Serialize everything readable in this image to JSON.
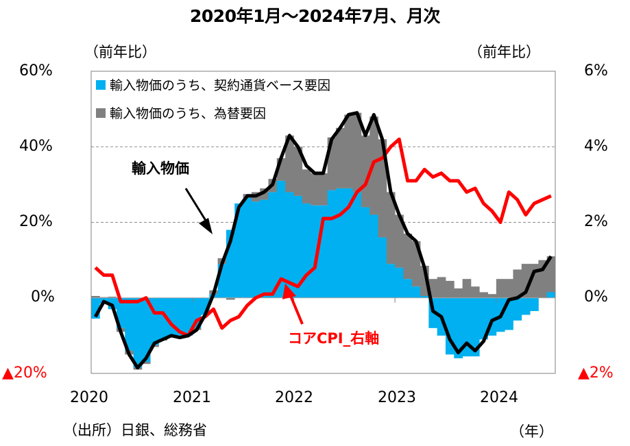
{
  "title": "2020年1月～2024年7月、月次",
  "left_unit": "（前年比）",
  "right_unit": "（前年比）",
  "left_ticks": [
    "60%",
    "40%",
    "20%",
    "0%",
    "▲20%"
  ],
  "right_ticks": [
    "6%",
    "4%",
    "2%",
    "0%",
    "▲2%"
  ],
  "x_ticks": [
    "2020",
    "2021",
    "2022",
    "2023",
    "2024"
  ],
  "source": "（出所）日銀、総務省",
  "year_unit": "（年）",
  "legend": {
    "contract": {
      "label": "輸入物価のうち、契約通貨ベース要因",
      "color": "#00b0f0"
    },
    "fx": {
      "label": "輸入物価のうち、為替要因",
      "color": "#808080"
    }
  },
  "annotations": {
    "import_price": "輸入物価",
    "core_cpi": "コアCPI_右軸"
  },
  "chart_data": {
    "type": "bar+line",
    "title": "2020年1月～2024年7月、月次",
    "xlabel": "（年）",
    "ylabel_left": "（前年比）",
    "ylabel_right": "（前年比）",
    "ylim_left": [
      -20,
      60
    ],
    "ylim_right": [
      -2,
      6
    ],
    "grid": true,
    "legend_position": "top-left",
    "x": [
      "2020-01",
      "2020-02",
      "2020-03",
      "2020-04",
      "2020-05",
      "2020-06",
      "2020-07",
      "2020-08",
      "2020-09",
      "2020-10",
      "2020-11",
      "2020-12",
      "2021-01",
      "2021-02",
      "2021-03",
      "2021-04",
      "2021-05",
      "2021-06",
      "2021-07",
      "2021-08",
      "2021-09",
      "2021-10",
      "2021-11",
      "2021-12",
      "2022-01",
      "2022-02",
      "2022-03",
      "2022-04",
      "2022-05",
      "2022-06",
      "2022-07",
      "2022-08",
      "2022-09",
      "2022-10",
      "2022-11",
      "2022-12",
      "2023-01",
      "2023-02",
      "2023-03",
      "2023-04",
      "2023-05",
      "2023-06",
      "2023-07",
      "2023-08",
      "2023-09",
      "2023-10",
      "2023-11",
      "2023-12",
      "2024-01",
      "2024-02",
      "2024-03",
      "2024-04",
      "2024-05",
      "2024-06",
      "2024-07"
    ],
    "series": [
      {
        "name": "輸入物価のうち、契約通貨ベース要因",
        "type": "bar",
        "axis": "left",
        "color": "#00b0f0",
        "values": [
          -5.5,
          -1.5,
          -3,
          -8,
          -14,
          -18.5,
          -17,
          -12.5,
          -11,
          -10,
          -10,
          -10,
          -8,
          -4.5,
          1,
          9,
          18,
          25,
          26.5,
          25.5,
          26,
          28,
          31,
          28,
          27,
          25,
          24.5,
          24.5,
          28.5,
          29,
          29,
          28,
          24,
          22,
          16,
          9,
          8,
          5,
          3,
          0.5,
          -8,
          -10,
          -15,
          -16,
          -15.5,
          -15.5,
          -11,
          -10,
          -9,
          -8.5,
          -6,
          -4.5,
          -3.5,
          0,
          1.5
        ]
      },
      {
        "name": "輸入物価のうち、為替要因",
        "type": "bar",
        "axis": "left",
        "color": "#808080",
        "values": [
          0.5,
          0.2,
          0.3,
          -1,
          -1,
          -0.5,
          -0.5,
          -0.5,
          -0.3,
          0,
          -0.5,
          0,
          -0.5,
          0,
          1,
          1.5,
          -0.5,
          0,
          1,
          2.5,
          3,
          3.5,
          6,
          15,
          13,
          9,
          8.5,
          8.5,
          14,
          16,
          19.5,
          21,
          19,
          26,
          26,
          19,
          14,
          12,
          12,
          8,
          5,
          5.5,
          4.5,
          2.5,
          5,
          3,
          1.5,
          1,
          5,
          5,
          7.5,
          9,
          9,
          10,
          9.5
        ]
      },
      {
        "name": "輸入物価",
        "type": "line",
        "axis": "left",
        "color": "#000000",
        "values": [
          -5,
          -1,
          -2,
          -9,
          -15,
          -18.5,
          -16,
          -12,
          -11,
          -10,
          -10.5,
          -10,
          -8.5,
          -4.5,
          1,
          9,
          15,
          24,
          27,
          27,
          28,
          30,
          37,
          43,
          40,
          35,
          33,
          33,
          42,
          45,
          48.5,
          49,
          43,
          48.5,
          42,
          28,
          22,
          17,
          15,
          8,
          -3.5,
          -5,
          -11,
          -14.5,
          -12,
          -14,
          -11.5,
          -6,
          -5,
          -0.5,
          0,
          1.5,
          7,
          7.5,
          11
        ]
      },
      {
        "name": "コアCPI_右軸",
        "type": "line",
        "axis": "right",
        "color": "#ff0000",
        "values": [
          0.8,
          0.6,
          0.6,
          -0.1,
          -0.1,
          -0.1,
          0.0,
          -0.4,
          -0.4,
          -0.7,
          -0.9,
          -1.0,
          -0.6,
          -0.5,
          -0.3,
          -0.8,
          -0.6,
          -0.5,
          -0.2,
          0.0,
          0.1,
          0.1,
          0.5,
          0.4,
          0.3,
          0.6,
          0.8,
          2.1,
          2.1,
          2.2,
          2.4,
          2.8,
          3.0,
          3.6,
          3.7,
          4.0,
          4.2,
          3.1,
          3.1,
          3.4,
          3.2,
          3.3,
          3.1,
          3.1,
          2.8,
          2.9,
          2.5,
          2.3,
          2.0,
          2.8,
          2.6,
          2.2,
          2.5,
          2.6,
          2.7
        ]
      }
    ]
  }
}
